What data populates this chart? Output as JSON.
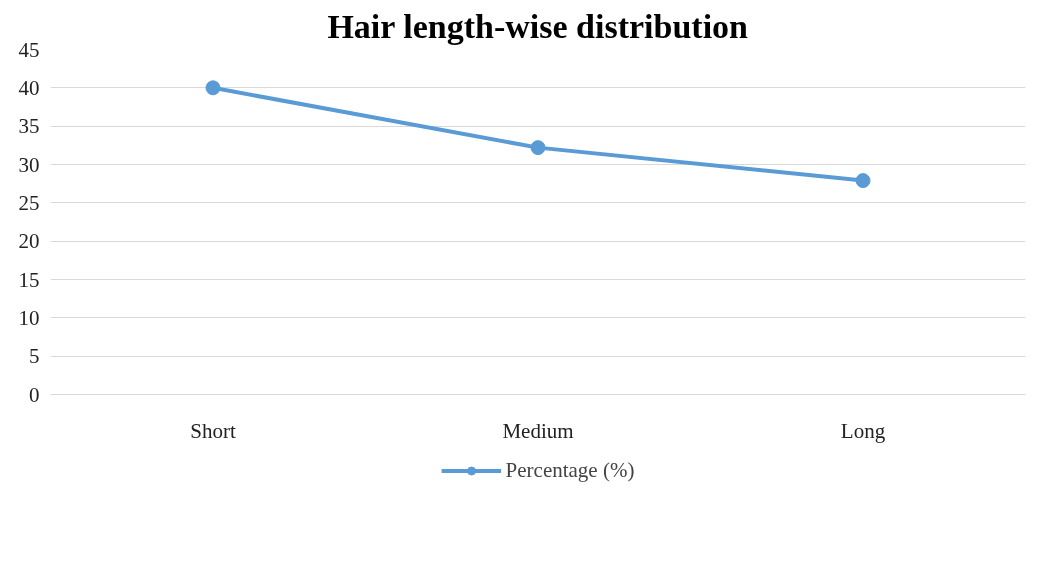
{
  "chart_data": {
    "type": "line",
    "title": "Hair length-wise distribution",
    "categories": [
      "Short",
      "Medium",
      "Long"
    ],
    "series": [
      {
        "name": "Percentage (%)",
        "color": "#5b9bd5",
        "values": [
          40,
          32.2,
          27.9
        ]
      }
    ],
    "ylim": [
      0,
      45
    ],
    "yticks": [
      0,
      5,
      10,
      15,
      20,
      25,
      30,
      35,
      40,
      45
    ],
    "grid": "y",
    "legend": "bottom",
    "marker": "circle",
    "line_style": "solid"
  }
}
